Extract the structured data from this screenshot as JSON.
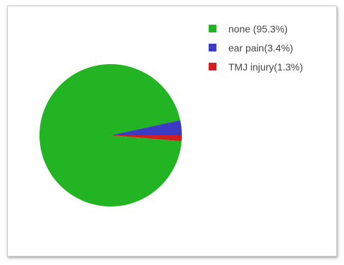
{
  "chart_data": {
    "type": "pie",
    "title": "",
    "categories": [
      "none",
      "ear pain",
      "TMJ injury"
    ],
    "values": [
      95.3,
      3.4,
      1.3
    ],
    "legend": {
      "placement": "top-right",
      "entries": [
        "none (95.3%)",
        "ear pain(3.4%)",
        "TMJ injury(1.3%)"
      ]
    },
    "colors": [
      "#22b422",
      "#3b3bc4",
      "#d21e1e"
    ]
  }
}
